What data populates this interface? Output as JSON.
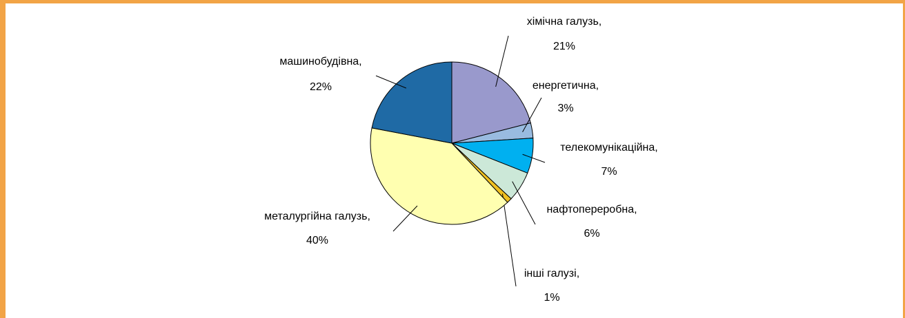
{
  "chart_data": {
    "type": "pie",
    "categories": [
      "хімічна галузь,",
      "енергетична,",
      "телекомунікаційна,",
      "нафтопереробна,",
      "інші галузі,",
      "металургійна галузь,",
      "машинобудівна,"
    ],
    "values": [
      21,
      3,
      7,
      6,
      1,
      40,
      22
    ],
    "value_labels": [
      "21%",
      "3%",
      "7%",
      "6%",
      "1%",
      "40%",
      "22%"
    ],
    "colors": [
      "#9999cc",
      "#99bbe0",
      "#00b0f0",
      "#cce8d8",
      "#f0c020",
      "#ffffb0",
      "#1f6aa5"
    ]
  }
}
